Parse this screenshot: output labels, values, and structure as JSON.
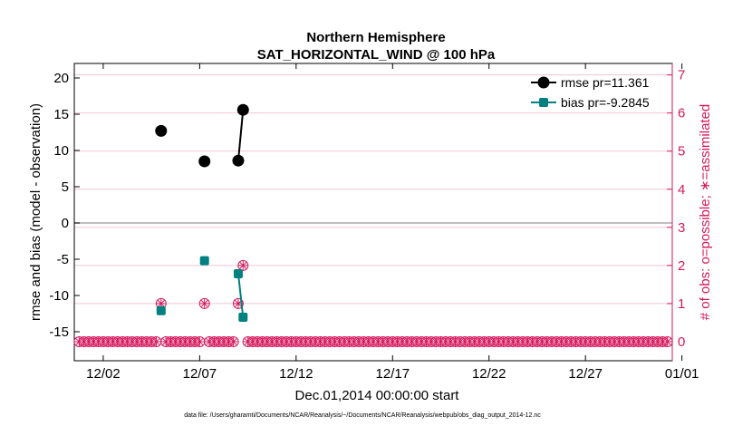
{
  "chart_data": {
    "type": "line",
    "title": "Northern Hemisphere",
    "subtitle": "SAT_HORIZONTAL_WIND @ 100 hPa",
    "xlabel": "Dec.01,2014 00:00:00 start",
    "ylabel": "rmse and bias (model - observation)",
    "y2label": "# of obs: o=possible; ∗=assimilated",
    "footer": "data file: /Users/gharamti/Documents/NCAR/Reanalysis/~/Documents/NCAR/Reanalysis/webpub/obs_diag_output_2014-12.nc",
    "xlim": [
      0.5,
      31.5
    ],
    "ylim": [
      -19,
      22
    ],
    "y2lim": [
      -0.5,
      7.3
    ],
    "x_ticks": [
      2,
      7,
      12,
      17,
      22,
      27,
      32
    ],
    "x_tick_labels": [
      "12/02",
      "12/07",
      "12/12",
      "12/17",
      "12/22",
      "12/27",
      "01/01"
    ],
    "y_ticks": [
      -15,
      -10,
      -5,
      0,
      5,
      10,
      15,
      20
    ],
    "y_tick_labels": [
      "-15",
      "-10",
      "-5",
      "0",
      "5",
      "10",
      "15",
      "20"
    ],
    "y2_ticks": [
      0,
      1,
      2,
      3,
      4,
      5,
      6,
      7
    ],
    "y2_tick_labels": [
      "0",
      "1",
      "2",
      "3",
      "4",
      "5",
      "6",
      "7"
    ],
    "zero_line": 0,
    "legend_position": "top-right",
    "colors": {
      "rmse": "#000000",
      "bias": "#008080",
      "obs": "#d6195c",
      "zero": "#aaaaaa",
      "grid_right": "#f2c6d6"
    },
    "series": [
      {
        "name": "rmse",
        "legend": "rmse pr=11.361",
        "points": [
          [
            5.0,
            12.7
          ],
          [
            7.25,
            8.5
          ],
          [
            9.0,
            8.6
          ],
          [
            9.25,
            15.6
          ]
        ],
        "segments": [
          [
            2,
            3
          ]
        ]
      },
      {
        "name": "bias",
        "legend": "bias pr=-9.2845",
        "points": [
          [
            5.0,
            -12.1
          ],
          [
            7.25,
            -5.2
          ],
          [
            9.0,
            -7.0
          ],
          [
            9.25,
            -13.0
          ]
        ],
        "segments": [
          [
            2,
            3
          ]
        ]
      }
    ],
    "obs_counts": {
      "start": 0.75,
      "step": 0.25,
      "end": 31.25,
      "nonzero": [
        {
          "x": 5.0,
          "possible": 1,
          "assimilated": 1
        },
        {
          "x": 7.25,
          "possible": 1,
          "assimilated": 1
        },
        {
          "x": 9.0,
          "possible": 1,
          "assimilated": 1
        },
        {
          "x": 9.25,
          "possible": 2,
          "assimilated": 2
        }
      ]
    }
  }
}
